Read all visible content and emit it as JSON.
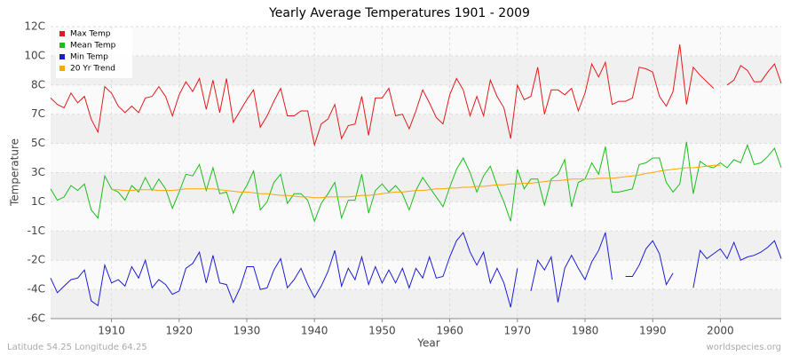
{
  "chart_data": {
    "type": "line",
    "title": "Yearly Average Temperatures 1901 - 2009",
    "x_label": "Year",
    "y_label": "Temperature",
    "footer_left": "Latitude 54.25 Longitude 64.25",
    "footer_right": "worldspecies.org",
    "legend": "top-left",
    "grid": true,
    "xlim": [
      1901,
      2009
    ],
    "xticks": [
      1910,
      1920,
      1930,
      1940,
      1950,
      1960,
      1970,
      1980,
      1990,
      2000
    ],
    "ylim": [
      -6,
      12
    ],
    "yticks": [
      {
        "value": -6,
        "label": "-6C"
      },
      {
        "value": -4.2,
        "label": "-4C"
      },
      {
        "value": -2.4,
        "label": "-2C"
      },
      {
        "value": -0.6,
        "label": "-1C"
      },
      {
        "value": 1.2,
        "label": "1C"
      },
      {
        "value": 3,
        "label": "3C"
      },
      {
        "value": 4.8,
        "label": "5C"
      },
      {
        "value": 6.6,
        "label": "7C"
      },
      {
        "value": 8.4,
        "label": "8C"
      },
      {
        "value": 10.2,
        "label": "10C"
      },
      {
        "value": 12,
        "label": "12C"
      }
    ],
    "x": [
      1901,
      1902,
      1903,
      1904,
      1905,
      1906,
      1907,
      1908,
      1909,
      1910,
      1911,
      1912,
      1913,
      1914,
      1915,
      1916,
      1917,
      1918,
      1919,
      1920,
      1921,
      1922,
      1923,
      1924,
      1925,
      1926,
      1927,
      1928,
      1929,
      1930,
      1931,
      1932,
      1933,
      1934,
      1935,
      1936,
      1937,
      1938,
      1939,
      1940,
      1941,
      1942,
      1943,
      1944,
      1945,
      1946,
      1947,
      1948,
      1949,
      1950,
      1951,
      1952,
      1953,
      1954,
      1955,
      1956,
      1957,
      1958,
      1959,
      1960,
      1961,
      1962,
      1963,
      1964,
      1965,
      1966,
      1967,
      1968,
      1969,
      1970,
      1971,
      1972,
      1973,
      1974,
      1975,
      1976,
      1977,
      1978,
      1979,
      1980,
      1981,
      1982,
      1983,
      1984,
      1985,
      1986,
      1987,
      1988,
      1989,
      1990,
      1991,
      1992,
      1993,
      1994,
      1995,
      1996,
      1997,
      1998,
      1999,
      2000,
      2001,
      2002,
      2003,
      2004,
      2005,
      2006,
      2007,
      2008,
      2009
    ],
    "series": [
      {
        "name": "Max Temp",
        "color": "#e31a1c",
        "values": [
          7.6,
          7.2,
          7.0,
          7.9,
          7.3,
          7.7,
          6.3,
          5.5,
          8.3,
          7.9,
          7.1,
          6.7,
          7.1,
          6.7,
          7.6,
          7.7,
          8.3,
          7.7,
          6.5,
          7.8,
          8.6,
          8.0,
          8.8,
          6.9,
          8.7,
          6.7,
          8.8,
          6.1,
          6.8,
          7.5,
          8.1,
          5.8,
          6.5,
          7.4,
          8.2,
          6.5,
          6.5,
          6.8,
          6.8,
          4.7,
          6.0,
          6.3,
          7.2,
          5.1,
          5.9,
          6.0,
          7.7,
          5.3,
          7.6,
          7.6,
          8.2,
          6.5,
          6.6,
          5.7,
          6.8,
          8.1,
          7.3,
          6.4,
          6.0,
          7.8,
          8.8,
          8.1,
          6.5,
          7.7,
          6.5,
          8.7,
          7.7,
          7.0,
          5.1,
          8.4,
          7.5,
          7.7,
          9.5,
          6.6,
          8.1,
          8.1,
          7.8,
          8.2,
          6.8,
          7.9,
          9.7,
          8.9,
          9.8,
          7.2,
          7.4,
          7.4,
          7.6,
          9.5,
          9.4,
          9.2,
          7.7,
          7.1,
          8.0,
          10.9,
          7.2,
          9.5,
          9.0,
          8.6,
          8.2,
          null,
          8.4,
          8.7,
          9.6,
          9.3,
          8.6,
          8.6,
          9.2,
          9.7,
          8.5
        ]
      },
      {
        "name": "Mean Temp",
        "color": "#1dbd1d",
        "values": [
          2.0,
          1.3,
          1.5,
          2.2,
          1.9,
          2.3,
          0.7,
          0.2,
          2.8,
          2.0,
          1.8,
          1.3,
          2.2,
          1.8,
          2.7,
          1.9,
          2.6,
          2.0,
          0.8,
          1.8,
          2.9,
          2.8,
          3.5,
          1.9,
          3.3,
          1.7,
          1.8,
          0.5,
          1.5,
          2.2,
          3.1,
          0.7,
          1.2,
          2.4,
          2.9,
          1.1,
          1.7,
          1.7,
          1.3,
          0.0,
          1.1,
          1.7,
          2.4,
          0.2,
          1.3,
          1.3,
          2.9,
          0.5,
          1.9,
          2.3,
          1.8,
          2.2,
          1.7,
          0.7,
          1.9,
          2.7,
          2.1,
          1.5,
          0.9,
          2.1,
          3.2,
          3.9,
          3.0,
          1.8,
          2.8,
          3.4,
          2.2,
          1.2,
          0.0,
          3.2,
          2.0,
          2.6,
          2.6,
          1.0,
          2.6,
          2.9,
          3.8,
          0.9,
          2.4,
          2.6,
          3.6,
          2.9,
          4.6,
          1.8,
          1.8,
          1.9,
          2.0,
          3.5,
          3.6,
          3.9,
          3.9,
          2.4,
          1.8,
          2.3,
          4.9,
          1.7,
          3.7,
          3.4,
          3.3,
          3.6,
          3.3,
          3.8,
          3.6,
          4.7,
          3.5,
          3.6,
          4.0,
          4.5,
          3.3
        ]
      },
      {
        "name": "Min Temp",
        "color": "#1c1cd6",
        "values": [
          -3.5,
          -4.4,
          -4.0,
          -3.6,
          -3.5,
          -3.0,
          -4.9,
          -5.2,
          -2.7,
          -3.8,
          -3.6,
          -4.0,
          -2.8,
          -3.5,
          -2.4,
          -4.1,
          -3.6,
          -3.9,
          -4.5,
          -4.3,
          -2.9,
          -2.6,
          -1.9,
          -3.8,
          -2.1,
          -3.8,
          -3.9,
          -5.0,
          -4.1,
          -2.8,
          -2.8,
          -4.2,
          -4.1,
          -3.0,
          -2.3,
          -4.1,
          -3.6,
          -2.9,
          -3.9,
          -4.7,
          -4.0,
          -3.1,
          -1.8,
          -4.0,
          -2.9,
          -3.6,
          -2.2,
          -3.9,
          -2.8,
          -3.8,
          -3.0,
          -3.8,
          -2.9,
          -4.1,
          -2.9,
          -3.5,
          -2.2,
          -3.5,
          -3.4,
          -2.2,
          -1.2,
          -0.7,
          -1.9,
          -2.7,
          -1.9,
          -3.8,
          -2.9,
          -3.8,
          -5.3,
          -2.9,
          null,
          -4.3,
          -2.4,
          -3.0,
          -2.2,
          -5.0,
          -2.9,
          -2.1,
          -2.9,
          -3.6,
          -2.5,
          -1.8,
          -0.7,
          -3.6,
          null,
          -3.4,
          -3.4,
          -2.7,
          -1.7,
          -1.2,
          -2.0,
          -3.9,
          -3.2,
          null,
          null,
          -4.1,
          -1.8,
          -2.3,
          -2.0,
          -1.7,
          -2.3,
          -1.3,
          -2.4,
          -2.2,
          -2.1,
          -1.9,
          -1.6,
          -1.2,
          -2.3
        ]
      },
      {
        "name": "20 Yr Trend",
        "color": "#ffa500",
        "values": [
          null,
          null,
          null,
          null,
          null,
          null,
          null,
          null,
          null,
          1.95,
          1.95,
          1.9,
          1.9,
          1.95,
          1.95,
          1.95,
          1.9,
          1.9,
          1.9,
          1.95,
          2.0,
          2.0,
          2.0,
          2.0,
          2.0,
          1.95,
          1.9,
          1.85,
          1.8,
          1.8,
          1.75,
          1.7,
          1.7,
          1.65,
          1.6,
          1.6,
          1.55,
          1.5,
          1.5,
          1.45,
          1.45,
          1.5,
          1.5,
          1.5,
          1.5,
          1.55,
          1.6,
          1.6,
          1.65,
          1.7,
          1.75,
          1.8,
          1.8,
          1.85,
          1.9,
          1.9,
          1.95,
          2.0,
          2.0,
          2.05,
          2.05,
          2.1,
          2.1,
          2.15,
          2.15,
          2.2,
          2.25,
          2.25,
          2.3,
          2.3,
          2.35,
          2.35,
          2.4,
          2.45,
          2.5,
          2.5,
          2.55,
          2.6,
          2.6,
          2.6,
          2.6,
          2.65,
          2.65,
          2.65,
          2.7,
          2.75,
          2.8,
          2.85,
          2.95,
          3.0,
          3.1,
          3.15,
          3.2,
          3.25,
          3.3,
          3.3,
          3.35,
          3.4,
          3.45,
          3.45,
          null,
          null,
          null,
          null,
          null,
          null,
          null,
          null,
          null
        ]
      }
    ]
  }
}
